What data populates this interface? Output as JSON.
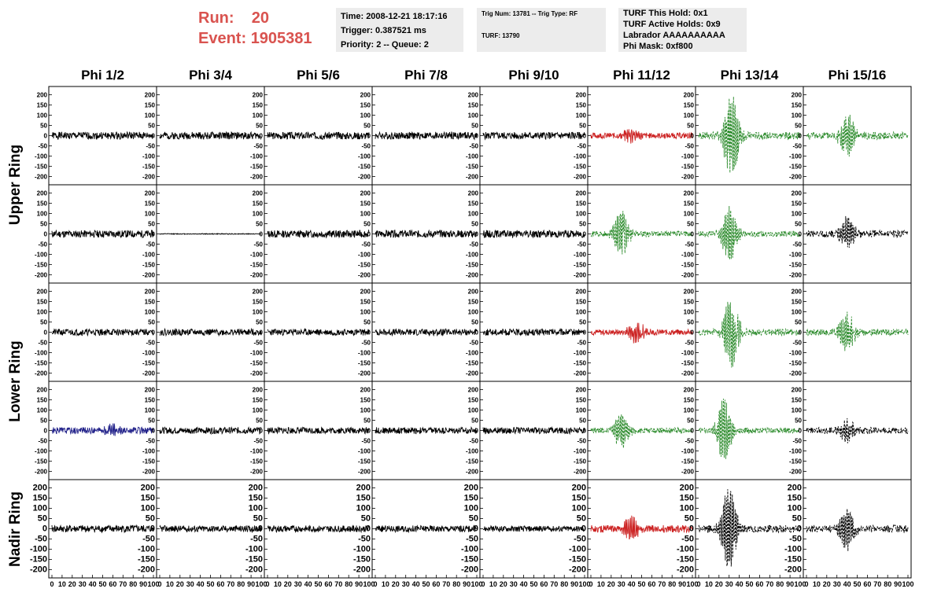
{
  "header": {
    "run_label": "Run:",
    "run_value": "20",
    "event_label": "Event:",
    "event_value": "1905381",
    "time": "Time: 2008-12-21 18:17:16",
    "trigger": "Trigger: 0.387521 ms",
    "priority": "Priority: 2 -- Queue: 2",
    "trig_num": "Trig Num: 13781 -- Trig Type: RF",
    "turf": "TURF: 13790",
    "turf_this_hold": "TURF This Hold: 0x1",
    "turf_active_holds": "TURF Active Holds: 0x9",
    "labrador": "Labrador AAAAAAAAAA",
    "phi_mask": "Phi Mask: 0xf800"
  },
  "columns": [
    "Phi 1/2",
    "Phi 3/4",
    "Phi 5/6",
    "Phi 7/8",
    "Phi 9/10",
    "Phi 11/12",
    "Phi 13/14",
    "Phi 15/16"
  ],
  "rows": [
    "Upper Ring",
    "Upper Ring",
    "Lower Ring",
    "Lower Ring",
    "Nadir Ring"
  ],
  "row_labels": [
    {
      "label": "Upper Ring",
      "rows": [
        0,
        1
      ]
    },
    {
      "label": "Lower Ring",
      "rows": [
        2,
        3
      ]
    },
    {
      "label": "Nadir Ring",
      "rows": [
        4
      ]
    }
  ],
  "colors": {
    "black": "#000000",
    "red": "#cc2222",
    "green": "#2a8a2a",
    "blue": "#22228a",
    "run_text": "#d9534f",
    "info_bg": "#ececec"
  },
  "chart_data": {
    "type": "line",
    "description_free": true,
    "ylim": [
      -225,
      225
    ],
    "xlim": [
      0,
      100
    ],
    "yticks": [
      -200,
      -150,
      -100,
      -50,
      0,
      50,
      100,
      150,
      200
    ],
    "xticks": [
      0,
      10,
      20,
      30,
      40,
      50,
      60,
      70,
      80,
      90,
      100
    ],
    "panels": [
      [
        {
          "color": "black",
          "style": "solid",
          "noise": 18,
          "burst_center": 35,
          "burst_amp": 0,
          "seed": 1
        },
        {
          "color": "black",
          "style": "solid",
          "noise": 18,
          "burst_center": 40,
          "burst_amp": 0,
          "seed": 2
        },
        {
          "color": "black",
          "style": "solid",
          "noise": 18,
          "burst_center": 40,
          "burst_amp": 0,
          "seed": 3
        },
        {
          "color": "black",
          "style": "solid",
          "noise": 18,
          "burst_center": 40,
          "burst_amp": 0,
          "seed": 4
        },
        {
          "color": "black",
          "style": "solid",
          "noise": 18,
          "burst_center": 40,
          "burst_amp": 0,
          "seed": 5
        },
        {
          "color": "red",
          "style": "solid",
          "noise": 14,
          "burst_center": 40,
          "burst_amp": 30,
          "seed": 6
        },
        {
          "color": "green",
          "style": "dashed",
          "noise": 18,
          "burst_center": 32,
          "burst_amp": 200,
          "seed": 7
        },
        {
          "color": "green",
          "style": "dashed",
          "noise": 18,
          "burst_center": 40,
          "burst_amp": 100,
          "seed": 8
        }
      ],
      [
        {
          "color": "black",
          "style": "solid",
          "noise": 18,
          "burst_center": 40,
          "burst_amp": 0,
          "seed": 11
        },
        {
          "color": "black",
          "style": "solid",
          "noise": 2,
          "burst_center": 40,
          "burst_amp": 0,
          "seed": 12
        },
        {
          "color": "black",
          "style": "solid",
          "noise": 18,
          "burst_center": 40,
          "burst_amp": 0,
          "seed": 13
        },
        {
          "color": "black",
          "style": "solid",
          "noise": 18,
          "burst_center": 40,
          "burst_amp": 0,
          "seed": 14
        },
        {
          "color": "black",
          "style": "solid",
          "noise": 18,
          "burst_center": 40,
          "burst_amp": 0,
          "seed": 15
        },
        {
          "color": "green",
          "style": "dashed",
          "noise": 14,
          "burst_center": 30,
          "burst_amp": 110,
          "seed": 16
        },
        {
          "color": "green",
          "style": "dashed",
          "noise": 14,
          "burst_center": 30,
          "burst_amp": 130,
          "seed": 17
        },
        {
          "color": "black",
          "style": "dashed",
          "noise": 18,
          "burst_center": 40,
          "burst_amp": 75,
          "seed": 18
        }
      ],
      [
        {
          "color": "black",
          "style": "solid",
          "noise": 16,
          "burst_center": 40,
          "burst_amp": 0,
          "seed": 21
        },
        {
          "color": "black",
          "style": "solid",
          "noise": 16,
          "burst_center": 40,
          "burst_amp": 0,
          "seed": 22
        },
        {
          "color": "black",
          "style": "solid",
          "noise": 16,
          "burst_center": 40,
          "burst_amp": 0,
          "seed": 23
        },
        {
          "color": "black",
          "style": "solid",
          "noise": 16,
          "burst_center": 40,
          "burst_amp": 0,
          "seed": 24
        },
        {
          "color": "black",
          "style": "solid",
          "noise": 16,
          "burst_center": 40,
          "burst_amp": 0,
          "seed": 25
        },
        {
          "color": "red",
          "style": "solid",
          "noise": 14,
          "burst_center": 45,
          "burst_amp": 50,
          "seed": 26
        },
        {
          "color": "green",
          "style": "dashed",
          "noise": 16,
          "burst_center": 32,
          "burst_amp": 170,
          "seed": 27
        },
        {
          "color": "green",
          "style": "dashed",
          "noise": 16,
          "burst_center": 40,
          "burst_amp": 90,
          "seed": 28
        }
      ],
      [
        {
          "color": "blue",
          "style": "solid",
          "noise": 16,
          "burst_center": 60,
          "burst_amp": 20,
          "seed": 31
        },
        {
          "color": "black",
          "style": "solid",
          "noise": 16,
          "burst_center": 40,
          "burst_amp": 0,
          "seed": 32
        },
        {
          "color": "black",
          "style": "solid",
          "noise": 16,
          "burst_center": 40,
          "burst_amp": 0,
          "seed": 33
        },
        {
          "color": "black",
          "style": "solid",
          "noise": 16,
          "burst_center": 40,
          "burst_amp": 0,
          "seed": 34
        },
        {
          "color": "black",
          "style": "solid",
          "noise": 16,
          "burst_center": 40,
          "burst_amp": 0,
          "seed": 35
        },
        {
          "color": "green",
          "style": "dashed",
          "noise": 14,
          "burst_center": 30,
          "burst_amp": 80,
          "seed": 36
        },
        {
          "color": "green",
          "style": "dashed",
          "noise": 14,
          "burst_center": 25,
          "burst_amp": 150,
          "seed": 37
        },
        {
          "color": "black",
          "style": "dashed",
          "noise": 16,
          "burst_center": 40,
          "burst_amp": 50,
          "seed": 38
        }
      ],
      [
        {
          "color": "black",
          "style": "solid",
          "noise": 18,
          "burst_center": 35,
          "burst_amp": 0,
          "seed": 41
        },
        {
          "color": "black",
          "style": "solid",
          "noise": 16,
          "burst_center": 40,
          "burst_amp": 0,
          "seed": 42
        },
        {
          "color": "black",
          "style": "solid",
          "noise": 16,
          "burst_center": 40,
          "burst_amp": 0,
          "seed": 43
        },
        {
          "color": "black",
          "style": "solid",
          "noise": 16,
          "burst_center": 40,
          "burst_amp": 0,
          "seed": 44
        },
        {
          "color": "black",
          "style": "solid",
          "noise": 14,
          "burst_center": 40,
          "burst_amp": 0,
          "seed": 45
        },
        {
          "color": "red",
          "style": "solid",
          "noise": 18,
          "burst_center": 40,
          "burst_amp": 60,
          "seed": 46
        },
        {
          "color": "black",
          "style": "dashed",
          "noise": 18,
          "burst_center": 30,
          "burst_amp": 200,
          "seed": 47
        },
        {
          "color": "black",
          "style": "dashed",
          "noise": 18,
          "burst_center": 40,
          "burst_amp": 100,
          "seed": 48
        }
      ]
    ]
  }
}
